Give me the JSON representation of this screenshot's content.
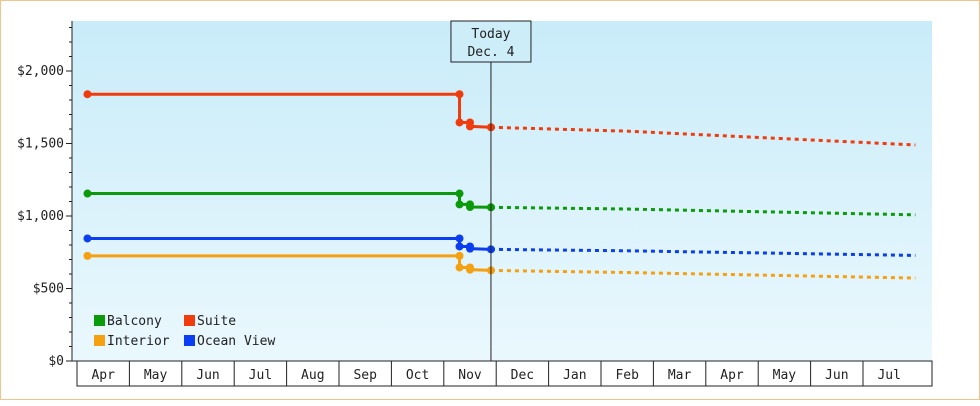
{
  "chart_data": {
    "type": "line",
    "x_months": [
      "Apr",
      "May",
      "Jun",
      "Jul",
      "Aug",
      "Sep",
      "Oct",
      "Nov",
      "Dec",
      "Jan",
      "Feb",
      "Mar",
      "Apr",
      "May",
      "Jun",
      "Jul"
    ],
    "y_ticks": [
      "$0",
      "$500",
      "$1,000",
      "$1,500",
      "$2,000"
    ],
    "ylim": [
      0,
      2350
    ],
    "today": {
      "line1": "Today",
      "line2": "Dec. 4",
      "x": 7.4
    },
    "grid": false,
    "legend_position": "bottom-left",
    "background_gradient": [
      "#c9ecf9",
      "#eaf8fd"
    ],
    "series": [
      {
        "name": "Suite",
        "color": "#f03c0c",
        "history": [
          [
            -0.3,
            1840
          ],
          [
            6.8,
            1840
          ],
          [
            6.8,
            1645
          ],
          [
            7.0,
            1645
          ],
          [
            7.0,
            1618
          ],
          [
            7.4,
            1612
          ]
        ],
        "markers": [
          [
            -0.3,
            1840
          ],
          [
            6.8,
            1840
          ],
          [
            6.8,
            1645
          ],
          [
            7.0,
            1645
          ],
          [
            7.0,
            1618
          ],
          [
            7.4,
            1612
          ]
        ],
        "forecast": [
          [
            7.4,
            1612
          ],
          [
            10.0,
            1585
          ],
          [
            15.5,
            1490
          ]
        ]
      },
      {
        "name": "Balcony",
        "color": "#0a9a0a",
        "history": [
          [
            -0.3,
            1155
          ],
          [
            6.8,
            1155
          ],
          [
            6.8,
            1080
          ],
          [
            7.0,
            1080
          ],
          [
            7.0,
            1062
          ],
          [
            7.4,
            1060
          ]
        ],
        "markers": [
          [
            -0.3,
            1155
          ],
          [
            6.8,
            1155
          ],
          [
            6.8,
            1080
          ],
          [
            7.0,
            1080
          ],
          [
            7.0,
            1062
          ],
          [
            7.4,
            1060
          ]
        ],
        "forecast": [
          [
            7.4,
            1060
          ],
          [
            10.0,
            1048
          ],
          [
            15.5,
            1008
          ]
        ]
      },
      {
        "name": "Ocean View",
        "color": "#0a3ef0",
        "history": [
          [
            -0.3,
            845
          ],
          [
            6.8,
            845
          ],
          [
            6.8,
            790
          ],
          [
            7.0,
            790
          ],
          [
            7.0,
            775
          ],
          [
            7.4,
            770
          ]
        ],
        "markers": [
          [
            -0.3,
            845
          ],
          [
            6.8,
            845
          ],
          [
            6.8,
            790
          ],
          [
            7.0,
            790
          ],
          [
            7.0,
            775
          ],
          [
            7.4,
            770
          ]
        ],
        "forecast": [
          [
            7.4,
            770
          ],
          [
            10.0,
            760
          ],
          [
            15.5,
            728
          ]
        ]
      },
      {
        "name": "Interior",
        "color": "#f5a011",
        "history": [
          [
            -0.3,
            725
          ],
          [
            6.8,
            725
          ],
          [
            6.8,
            645
          ],
          [
            7.0,
            645
          ],
          [
            7.0,
            630
          ],
          [
            7.4,
            625
          ]
        ],
        "markers": [
          [
            -0.3,
            725
          ],
          [
            6.8,
            725
          ],
          [
            6.8,
            645
          ],
          [
            7.0,
            645
          ],
          [
            7.0,
            630
          ],
          [
            7.4,
            625
          ]
        ],
        "forecast": [
          [
            7.4,
            625
          ],
          [
            10.0,
            610
          ],
          [
            15.5,
            572
          ]
        ]
      }
    ],
    "legend": [
      {
        "name": "Balcony",
        "color": "#0a9a0a"
      },
      {
        "name": "Suite",
        "color": "#f03c0c"
      },
      {
        "name": "Interior",
        "color": "#f5a011"
      },
      {
        "name": "Ocean View",
        "color": "#0a3ef0"
      }
    ]
  }
}
